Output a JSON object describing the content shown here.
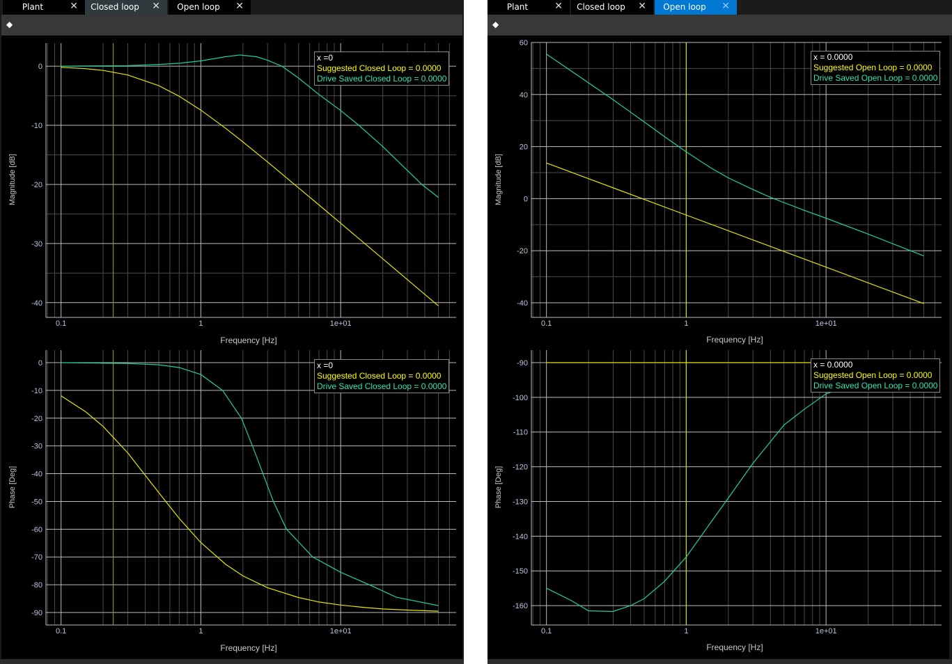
{
  "left_panel": {
    "tabs": [
      {
        "label": "Plant",
        "close": "✕"
      },
      {
        "label": "Closed loop",
        "close": "✕"
      },
      {
        "label": "Open loop",
        "close": "✕"
      }
    ],
    "active_tab": "Closed loop",
    "toolbar_icon": "eraser-icon",
    "mag_legend": {
      "x": "x =0",
      "s1": "Suggested Closed Loop = 0.0000",
      "s2": "Drive Saved Closed Loop = 0.0000"
    },
    "phase_legend": {
      "x": "x =0",
      "s1": "Suggested Closed Loop = 0.0000",
      "s2": "Drive Saved Closed Loop = 0.0000"
    }
  },
  "right_panel": {
    "tabs": [
      {
        "label": "Plant",
        "close": "✕"
      },
      {
        "label": "Closed loop",
        "close": "✕"
      },
      {
        "label": "Open loop",
        "close": "✕"
      }
    ],
    "active_tab": "Open loop",
    "toolbar_icon": "eraser-icon",
    "mag_legend": {
      "x": "x = 0.0000",
      "s1": "Suggested Open Loop = 0.0000",
      "s2": "Drive Saved Open Loop = 0.0000"
    },
    "phase_legend": {
      "x": "x = 0.0000",
      "s1": "Suggested Open Loop = 0.0000",
      "s2": "Drive Saved Open Loop = 0.0000"
    }
  },
  "colors": {
    "suggested": "#e6e600",
    "drive_saved": "#1fd19a",
    "cursor_left": "#8c8c32",
    "cursor_right": "#d8d820",
    "tick_label": "#b8c6e0"
  },
  "chart_data": [
    {
      "id": "closed-magnitude",
      "type": "line",
      "xscale": "log",
      "xlabel": "Frequency [Hz]",
      "ylabel": "Magnitude [dB]",
      "xlim": [
        0.078,
        67
      ],
      "ylim": [
        -42.5,
        3.9
      ],
      "xticks": [
        {
          "v": 0.1,
          "label": "0.1"
        },
        {
          "v": 1,
          "label": "1"
        },
        {
          "v": 10,
          "label": "1e+01"
        }
      ],
      "yticks": [
        0,
        -10,
        -20,
        -30,
        -40
      ],
      "cursor_x": 0.236,
      "grid": true,
      "series": [
        {
          "name": "Suggested Closed Loop",
          "color": "#e6e600",
          "points": [
            [
              0.1,
              -0.19
            ],
            [
              0.15,
              -0.42
            ],
            [
              0.2,
              -0.72
            ],
            [
              0.3,
              -1.48
            ],
            [
              0.5,
              -3.29
            ],
            [
              0.7,
              -5.08
            ],
            [
              1,
              -7.43
            ],
            [
              1.5,
              -10.49
            ],
            [
              2,
              -12.81
            ],
            [
              3,
              -16.2
            ],
            [
              5,
              -20.58
            ],
            [
              7,
              -23.48
            ],
            [
              10,
              -26.57
            ],
            [
              15,
              -30.09
            ],
            [
              20,
              -32.58
            ],
            [
              30,
              -36.1
            ],
            [
              50,
              -40.54
            ]
          ]
        },
        {
          "name": "Drive Saved Closed Loop",
          "color": "#1fd19a",
          "points": [
            [
              0.1,
              0
            ],
            [
              0.3,
              0.1
            ],
            [
              0.5,
              0.3
            ],
            [
              0.7,
              0.5
            ],
            [
              1,
              0.9
            ],
            [
              1.5,
              1.6
            ],
            [
              1.9,
              1.9
            ],
            [
              2.5,
              1.6
            ],
            [
              3,
              1.0
            ],
            [
              3.8,
              0
            ],
            [
              5,
              -2
            ],
            [
              7,
              -4.8
            ],
            [
              10,
              -7.5
            ],
            [
              13.5,
              -10
            ],
            [
              20,
              -13.6
            ],
            [
              38,
              -20
            ],
            [
              50,
              -22.2
            ]
          ]
        }
      ]
    },
    {
      "id": "closed-phase",
      "type": "line",
      "xscale": "log",
      "xlabel": "Frequency [Hz]",
      "ylabel": "Phase [Deg]",
      "xlim": [
        0.078,
        67
      ],
      "ylim": [
        -94.5,
        4.5
      ],
      "xticks": [
        {
          "v": 0.1,
          "label": "0.1"
        },
        {
          "v": 1,
          "label": "1"
        },
        {
          "v": 10,
          "label": "1e+01"
        }
      ],
      "yticks": [
        0,
        -10,
        -20,
        -30,
        -40,
        -50,
        -60,
        -70,
        -80,
        -90
      ],
      "cursor_x": 0.236,
      "grid": true,
      "series": [
        {
          "name": "Suggested Closed Loop",
          "color": "#e6e600",
          "points": [
            [
              0.1,
              -12
            ],
            [
              0.15,
              -17.7
            ],
            [
              0.2,
              -23
            ],
            [
              0.3,
              -32.5
            ],
            [
              0.5,
              -46.8
            ],
            [
              0.7,
              -56.1
            ],
            [
              1,
              -64.8
            ],
            [
              1.5,
              -72.6
            ],
            [
              2,
              -76.8
            ],
            [
              3,
              -81.1
            ],
            [
              5,
              -84.6
            ],
            [
              7,
              -86.2
            ],
            [
              10,
              -87.3
            ],
            [
              15,
              -88.2
            ],
            [
              20,
              -88.7
            ],
            [
              30,
              -89.1
            ],
            [
              50,
              -89.5
            ]
          ]
        },
        {
          "name": "Drive Saved Closed Loop",
          "color": "#1fd19a",
          "points": [
            [
              0.1,
              0
            ],
            [
              0.3,
              -0.3
            ],
            [
              0.5,
              -0.8
            ],
            [
              0.7,
              -1.8
            ],
            [
              1,
              -4.3
            ],
            [
              1.43,
              -10
            ],
            [
              1.95,
              -20
            ],
            [
              2.34,
              -30
            ],
            [
              2.78,
              -40
            ],
            [
              3.3,
              -50
            ],
            [
              4.1,
              -60
            ],
            [
              6.3,
              -70
            ],
            [
              10,
              -75.5
            ],
            [
              16,
              -80
            ],
            [
              25,
              -84.5
            ],
            [
              50,
              -87.5
            ]
          ]
        }
      ]
    },
    {
      "id": "open-magnitude",
      "type": "line",
      "xscale": "log",
      "xlabel": "Frequency [Hz]",
      "ylabel": "Magnitude [dB]",
      "xlim": [
        0.078,
        67
      ],
      "ylim": [
        -45.6,
        60
      ],
      "xticks": [
        {
          "v": 0.1,
          "label": "0.1"
        },
        {
          "v": 1,
          "label": "1"
        },
        {
          "v": 10,
          "label": "1e+01"
        }
      ],
      "yticks": [
        60,
        40,
        20,
        0,
        -20,
        -40
      ],
      "cursor_x": 1,
      "grid": true,
      "series": [
        {
          "name": "Suggested Open Loop",
          "color": "#e6e600",
          "points": [
            [
              0.1,
              13.7
            ],
            [
              1,
              -6.3
            ],
            [
              10,
              -26.3
            ],
            [
              50,
              -40.3
            ]
          ]
        },
        {
          "name": "Drive Saved Open Loop",
          "color": "#1fd19a",
          "points": [
            [
              0.1,
              55.5
            ],
            [
              0.2,
              44.5
            ],
            [
              0.3,
              38
            ],
            [
              0.5,
              29.5
            ],
            [
              0.7,
              23.8
            ],
            [
              1,
              18
            ],
            [
              1.5,
              11.8
            ],
            [
              2,
              8
            ],
            [
              3,
              3.5
            ],
            [
              4,
              0.5
            ],
            [
              5,
              -1.5
            ],
            [
              7,
              -4.5
            ],
            [
              10,
              -7.5
            ],
            [
              20,
              -13.6
            ],
            [
              50,
              -22
            ]
          ]
        }
      ]
    },
    {
      "id": "open-phase",
      "type": "line",
      "xscale": "log",
      "xlabel": "Frequency [Hz]",
      "ylabel": "Phase [Deg]",
      "xlim": [
        0.078,
        67
      ],
      "ylim": [
        -165.6,
        -86.4
      ],
      "xticks": [
        {
          "v": 0.1,
          "label": "0.1"
        },
        {
          "v": 1,
          "label": "1"
        },
        {
          "v": 10,
          "label": "1e+01"
        }
      ],
      "yticks": [
        -90,
        -100,
        -110,
        -120,
        -130,
        -140,
        -150,
        -160
      ],
      "cursor_x": 1,
      "grid": true,
      "series": [
        {
          "name": "Suggested Open Loop",
          "color": "#e6e600",
          "points": [
            [
              0.1,
              -90
            ],
            [
              50,
              -90
            ]
          ]
        },
        {
          "name": "Drive Saved Open Loop",
          "color": "#1fd19a",
          "points": [
            [
              0.1,
              -155
            ],
            [
              0.15,
              -158.5
            ],
            [
              0.2,
              -161.5
            ],
            [
              0.3,
              -161.7
            ],
            [
              0.4,
              -160
            ],
            [
              0.5,
              -158
            ],
            [
              0.7,
              -153
            ],
            [
              1,
              -146
            ],
            [
              1.5,
              -136
            ],
            [
              2,
              -129
            ],
            [
              3,
              -119
            ],
            [
              5,
              -108
            ],
            [
              7,
              -103.4
            ],
            [
              10,
              -99
            ],
            [
              20,
              -95
            ],
            [
              50,
              -92
            ]
          ]
        }
      ]
    }
  ]
}
